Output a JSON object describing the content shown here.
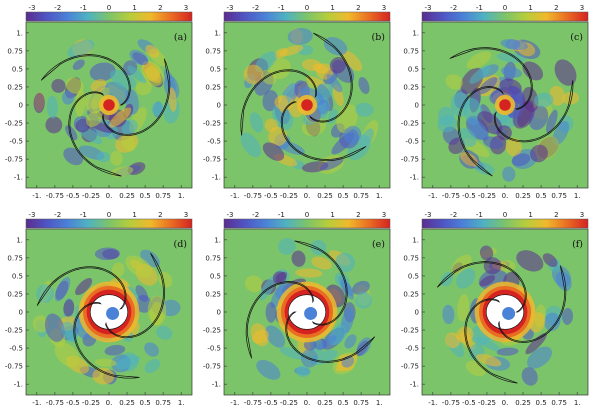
{
  "chart_data": {
    "type": "heatmap",
    "colorbar": {
      "ticks": [
        "-3",
        "-2",
        "-1",
        "0",
        "1",
        "2",
        "3"
      ],
      "range": [
        -3,
        3
      ],
      "colors": [
        "#5b2c8f",
        "#4f55c4",
        "#4a82d8",
        "#4fb3c0",
        "#7cc46a",
        "#b6cd3c",
        "#f0b92c",
        "#ea6c22",
        "#d42321"
      ],
      "saturated_color": "#ffffff"
    },
    "axes": {
      "xlim": [
        -1.15,
        1.15
      ],
      "ylim": [
        -1.15,
        1.15
      ],
      "x_ticks": [
        "-1.",
        "-0.75",
        "-0.5",
        "-0.25",
        "0.",
        "0.25",
        "0.5",
        "0.75",
        "1."
      ],
      "y_ticks": [
        "1.",
        "0.75",
        "0.5",
        "0.25",
        "0",
        "-0.25",
        "-0.5",
        "-0.75",
        "-1."
      ]
    },
    "panels": [
      {
        "label": "(a)",
        "orientation": 0
      },
      {
        "label": "(b)",
        "orientation": 45
      },
      {
        "label": "(c)",
        "orientation": 100
      },
      {
        "label": "(d)",
        "orientation": 15
      },
      {
        "label": "(e)",
        "orientation": 60
      },
      {
        "label": "(f)",
        "orientation": 120
      }
    ]
  }
}
